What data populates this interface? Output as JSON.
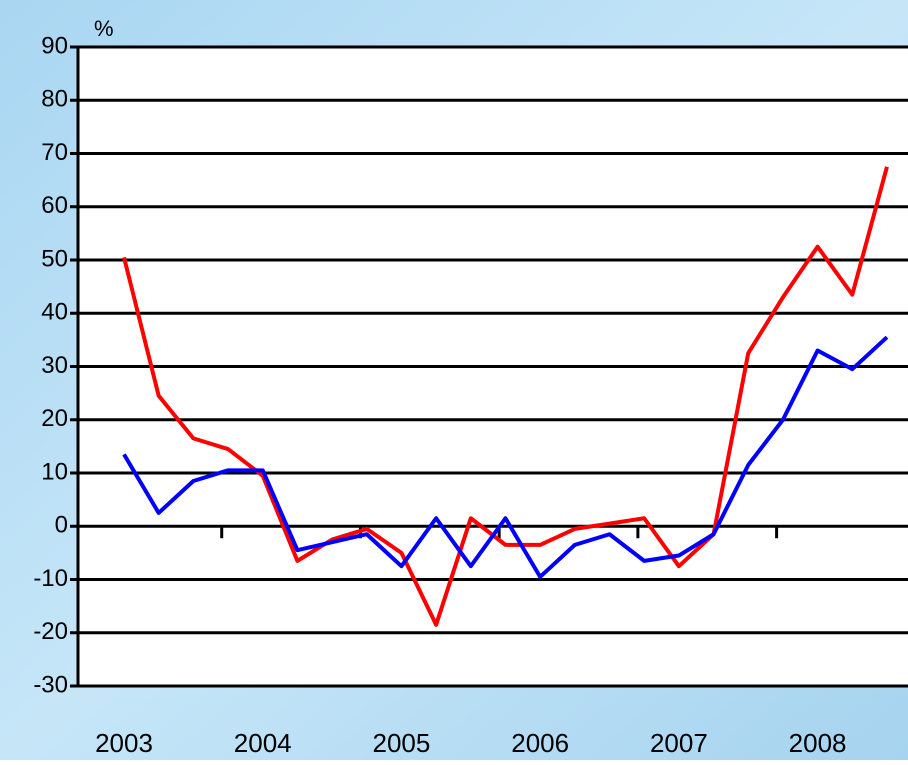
{
  "chart_data": {
    "type": "line",
    "y_label": "%",
    "categories": [
      "2003",
      null,
      null,
      null,
      "2004",
      null,
      null,
      null,
      "2005",
      null,
      null,
      null,
      "2006",
      null,
      null,
      null,
      "2007",
      null,
      null,
      null,
      "2008",
      null,
      null
    ],
    "series": [
      {
        "color": "#ff0000",
        "values": [
          50.5,
          24.5,
          16.5,
          14.5,
          9.5,
          -6.5,
          -2.5,
          -0.5,
          -5,
          -18.5,
          1.5,
          -3.5,
          -3.5,
          -0.5,
          0.5,
          1.5,
          -7.5,
          -1.5,
          32.5,
          43,
          52.5,
          43.5,
          67.5
        ]
      },
      {
        "color": "#0000ff",
        "values": [
          13.5,
          2.5,
          8.5,
          10.5,
          10.5,
          -4.5,
          -3,
          -1.5,
          -7.5,
          1.5,
          -7.5,
          1.5,
          -9.5,
          -3.5,
          -1.5,
          -6.5,
          -5.5,
          -1.5,
          11.5,
          20,
          33,
          29.5,
          35.5
        ]
      }
    ],
    "ylim": [
      -30,
      90
    ],
    "yticks": [
      -30,
      -20,
      -10,
      0,
      10,
      20,
      30,
      40,
      50,
      60,
      70,
      80,
      90
    ],
    "grid": true
  }
}
